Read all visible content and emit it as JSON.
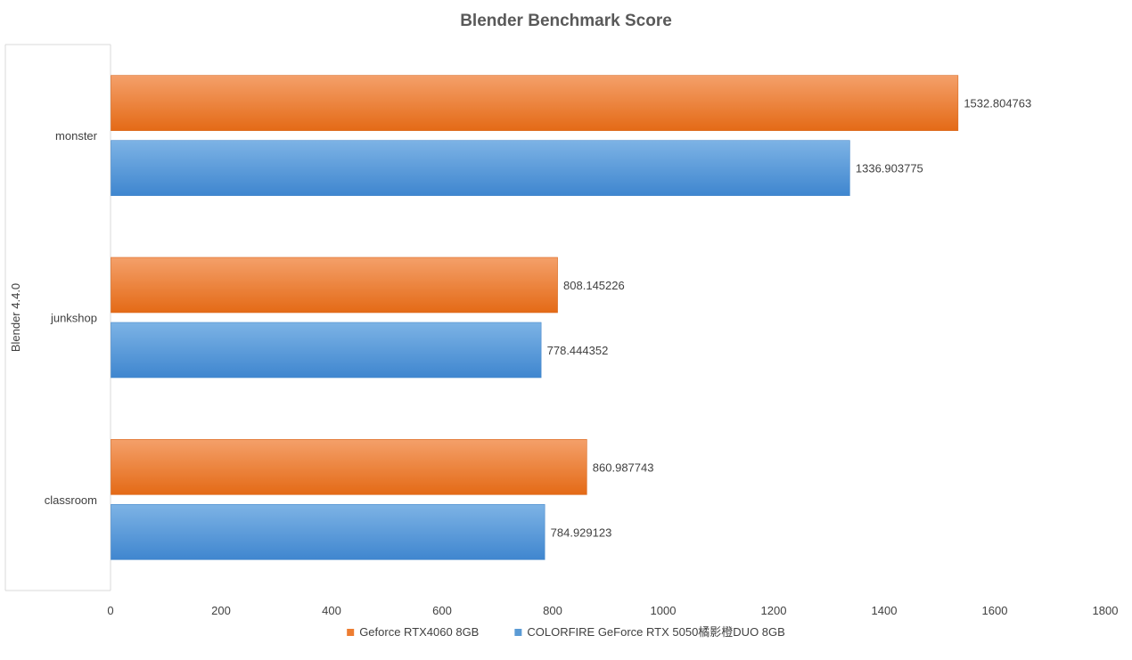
{
  "chart_data": {
    "type": "bar",
    "orientation": "horizontal",
    "title": "Blender Benchmark Score",
    "group_label": "Blender 4.4.0",
    "categories": [
      "monster",
      "junkshop",
      "classroom"
    ],
    "series": [
      {
        "name": "Geforce RTX4060 8GB",
        "color": "#ED7D31",
        "values": [
          1532.804763,
          808.145226,
          860.987743
        ]
      },
      {
        "name": "COLORFIRE GeForce RTX 5050橘影橙DUO 8GB",
        "color": "#5B9BD5",
        "values": [
          1336.903775,
          778.444352,
          784.929123
        ]
      }
    ],
    "value_labels": [
      [
        "1532.804763",
        "808.145226",
        "860.987743"
      ],
      [
        "1336.903775",
        "778.444352",
        "784.929123"
      ]
    ],
    "xlim": [
      0,
      1800
    ],
    "xticks": [
      0,
      200,
      400,
      600,
      800,
      1000,
      1200,
      1400,
      1600,
      1800
    ],
    "xtick_labels": [
      "0",
      "200",
      "400",
      "600",
      "800",
      "1000",
      "1200",
      "1400",
      "1600",
      "1800"
    ],
    "grid": false,
    "legend_position": "bottom"
  }
}
